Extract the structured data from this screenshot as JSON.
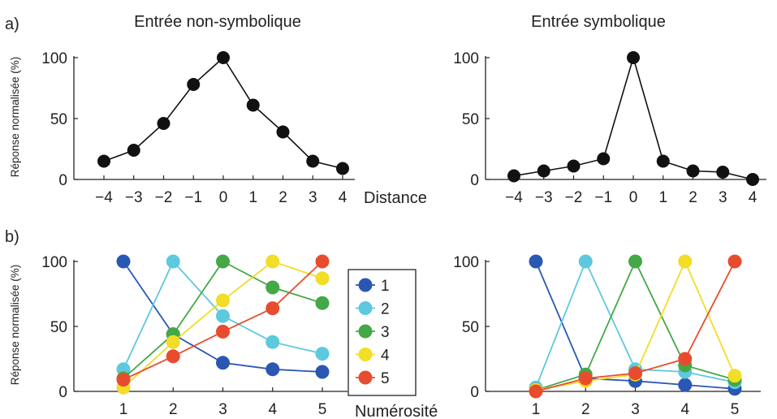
{
  "figure": {
    "label_a": "a)",
    "label_b": "b)"
  },
  "chart_data": [
    {
      "panel": "a-left",
      "type": "line",
      "title": "Entrée non-symbolique",
      "ylabel": "Réponse normalisée (%)",
      "xlabel": "Distance",
      "x": [
        -4,
        -3,
        -2,
        -1,
        0,
        1,
        2,
        3,
        4
      ],
      "x_ticks": [
        "−4",
        "−3",
        "−2",
        "−1",
        "0",
        "1",
        "2",
        "3",
        "4"
      ],
      "y_ticks": [
        "0",
        "50",
        "100"
      ],
      "ylim": [
        0,
        100
      ],
      "series": [
        {
          "color": "#111111",
          "values": [
            15,
            24,
            46,
            78,
            100,
            61,
            39,
            15,
            9
          ]
        }
      ]
    },
    {
      "panel": "a-right",
      "type": "line",
      "title": "Entrée symbolique",
      "ylabel": "",
      "xlabel": "",
      "x": [
        -4,
        -3,
        -2,
        -1,
        0,
        1,
        2,
        3,
        4
      ],
      "x_ticks": [
        "−4",
        "−3",
        "−2",
        "−1",
        "0",
        "1",
        "2",
        "3",
        "4"
      ],
      "y_ticks": [
        "0",
        "50",
        "100"
      ],
      "ylim": [
        0,
        100
      ],
      "series": [
        {
          "color": "#111111",
          "values": [
            3,
            7,
            11,
            17,
            100,
            15,
            7,
            6,
            0
          ]
        }
      ]
    },
    {
      "panel": "b-left",
      "type": "line",
      "title": "",
      "ylabel": "Réponse normalisée (%)",
      "xlabel": "Numérosité",
      "x": [
        1,
        2,
        3,
        4,
        5
      ],
      "x_ticks": [
        "1",
        "2",
        "3",
        "4",
        "5"
      ],
      "y_ticks": [
        "0",
        "50",
        "100"
      ],
      "ylim": [
        0,
        100
      ],
      "legend": {
        "position": "right",
        "entries": [
          "1",
          "2",
          "3",
          "4",
          "5"
        ]
      },
      "series": [
        {
          "name": "1",
          "color": "#2a57b4",
          "values": [
            100,
            44,
            22,
            17,
            15
          ]
        },
        {
          "name": "2",
          "color": "#5ec8de",
          "values": [
            17,
            100,
            58,
            38,
            29
          ]
        },
        {
          "name": "3",
          "color": "#43a845",
          "values": [
            10,
            44,
            100,
            80,
            68
          ]
        },
        {
          "name": "4",
          "color": "#f2dd27",
          "values": [
            3,
            38,
            70,
            100,
            87
          ]
        },
        {
          "name": "5",
          "color": "#e84c2e",
          "values": [
            9,
            27,
            46,
            64,
            100
          ]
        }
      ]
    },
    {
      "panel": "b-right",
      "type": "line",
      "title": "",
      "ylabel": "",
      "xlabel": "",
      "x": [
        1,
        2,
        3,
        4,
        5
      ],
      "x_ticks": [
        "1",
        "2",
        "3",
        "4",
        "5"
      ],
      "y_ticks": [
        "0",
        "50",
        "100"
      ],
      "ylim": [
        0,
        100
      ],
      "series": [
        {
          "name": "1",
          "color": "#2a57b4",
          "values": [
            100,
            10,
            8,
            5,
            2
          ]
        },
        {
          "name": "2",
          "color": "#5ec8de",
          "values": [
            3,
            100,
            17,
            15,
            7
          ]
        },
        {
          "name": "3",
          "color": "#43a845",
          "values": [
            1,
            13,
            100,
            20,
            9
          ]
        },
        {
          "name": "4",
          "color": "#f2dd27",
          "values": [
            1,
            8,
            13,
            100,
            12
          ]
        },
        {
          "name": "5",
          "color": "#e84c2e",
          "values": [
            0,
            10,
            14,
            25,
            100
          ]
        }
      ]
    }
  ]
}
